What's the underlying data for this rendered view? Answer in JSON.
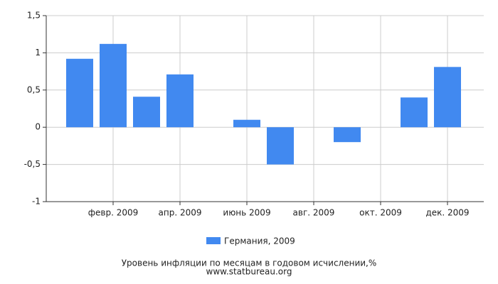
{
  "chart_data": {
    "type": "bar",
    "title": "Уровень инфляции по месяцам в годовом исчислении,%",
    "source": "www.statbureau.org",
    "categories": [
      null,
      "февр. 2009",
      null,
      "апр. 2009",
      null,
      "июнь 2009",
      null,
      "авг. 2009",
      null,
      "окт. 2009",
      null,
      "дек. 2009"
    ],
    "series": [
      {
        "name": "Германия, 2009",
        "color": "#4189f0",
        "values": [
          0.92,
          1.12,
          0.41,
          0.71,
          0,
          0.1,
          -0.5,
          0,
          -0.2,
          0,
          0.4,
          0.81
        ]
      }
    ],
    "ylim": [
      -1,
      1.5
    ],
    "yticks": [
      -1,
      {
        "value": -0.5,
        "label": "-0,5"
      },
      0,
      {
        "value": 0.5,
        "label": "0,5"
      },
      1,
      {
        "value": 1.5,
        "label": "1,5"
      }
    ],
    "grid": true
  }
}
